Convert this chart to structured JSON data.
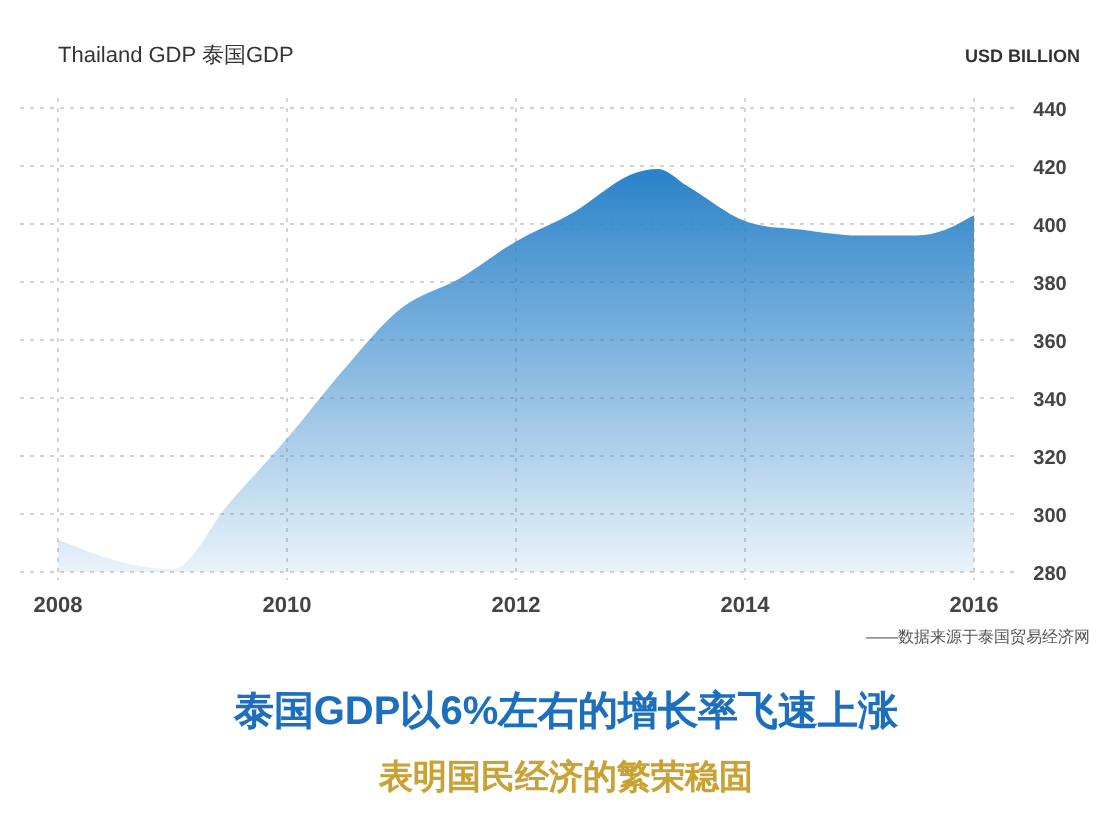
{
  "chart_data": {
    "type": "area",
    "title": "Thailand GDP  泰国GDP",
    "ylabel": "USD BILLION",
    "x": [
      2008,
      2008.5,
      2009,
      2009.5,
      2010,
      2010.5,
      2011,
      2011.5,
      2012,
      2012.5,
      2013,
      2013.24,
      2013.5,
      2014,
      2014.5,
      2015,
      2015.5,
      2015.75,
      2016
    ],
    "series": [
      {
        "color": "#2a82c9",
        "values": [
          291,
          284,
          281,
          304,
          326,
          350,
          371,
          381,
          394,
          404,
          417,
          419,
          413,
          401,
          398,
          396,
          396,
          398,
          403
        ]
      }
    ],
    "xlim": [
      2008,
      2016
    ],
    "xticks": [
      2008,
      2010,
      2012,
      2014,
      2016
    ],
    "ylim": [
      280,
      440
    ],
    "yticks": [
      280,
      300,
      320,
      340,
      360,
      380,
      400,
      420,
      440
    ],
    "grid": true,
    "annotations": [
      "——数据来源于泰国贸易经济网",
      "泰国GDP以6%左右的增长率飞速上涨",
      "表明国民经济的繁荣稳固"
    ]
  }
}
